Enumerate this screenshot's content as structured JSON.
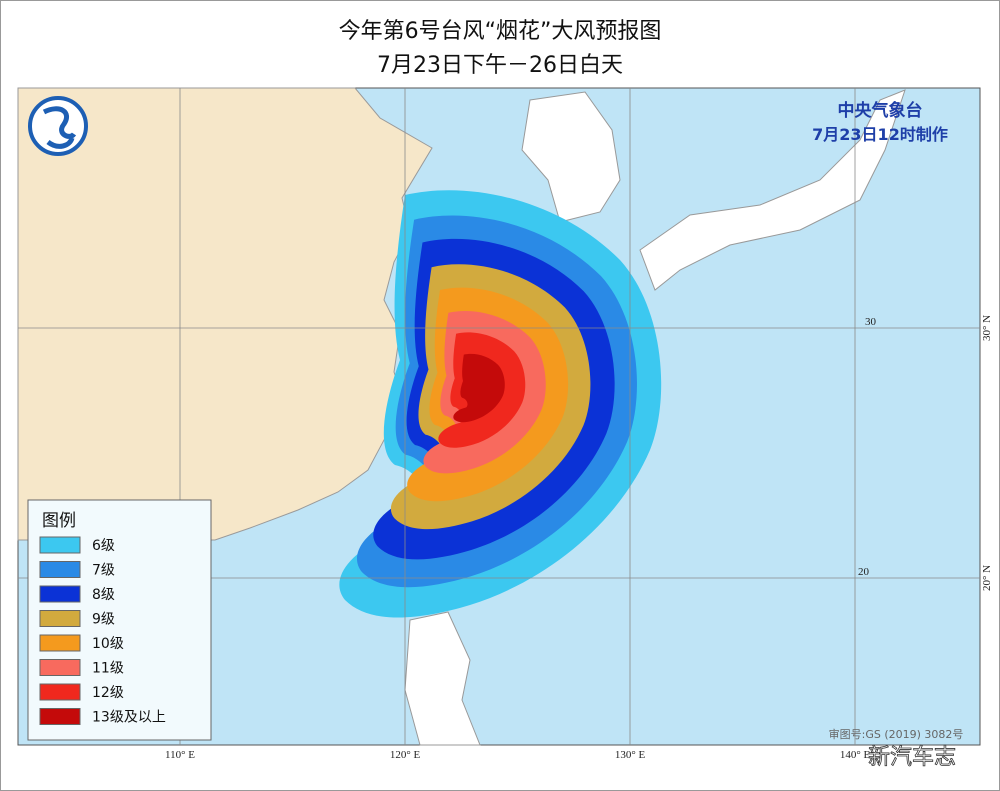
{
  "header": {
    "title": "今年第6号台风“烟花”大风预报图",
    "subtitle": "7月23日下午－26日白天"
  },
  "agency": {
    "name": "中央气象台",
    "issued": "7月23日12时制作"
  },
  "legend": {
    "title": "图例",
    "items": [
      {
        "label": "6级",
        "color": "#3cc8f0"
      },
      {
        "label": "7级",
        "color": "#2a8ae6"
      },
      {
        "label": "8级",
        "color": "#0b32d6"
      },
      {
        "label": "9级",
        "color": "#d2aa3e"
      },
      {
        "label": "10级",
        "color": "#f49a1e"
      },
      {
        "label": "11级",
        "color": "#f86a5e"
      },
      {
        "label": "12级",
        "color": "#f0281e"
      },
      {
        "label": "13级及以上",
        "color": "#c40a0a"
      }
    ]
  },
  "axes": {
    "longitudes": [
      "110° E",
      "120° E",
      "130° E",
      "140° E"
    ],
    "latitudes": [
      "30° N",
      "20° N"
    ],
    "inner_latitudes": [
      "30",
      "20"
    ]
  },
  "footer": {
    "approval": "审图号:GS (2019) 3082号",
    "watermark": "新汽车志"
  }
}
